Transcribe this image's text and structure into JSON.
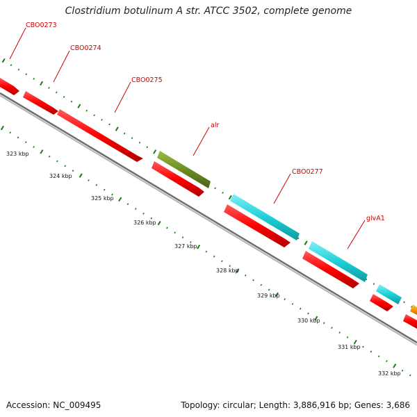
{
  "title": "Clostridium botulinum A str. ATCC 3502, complete genome",
  "footer": {
    "accession": "Accession: NC_009495",
    "summary": "Topology: circular; Length: 3,886,916 bp; Genes: 3,686"
  },
  "colors": {
    "backbone": "#8c8c8c",
    "ticks": "#1a7a1a",
    "label": "#cc0000",
    "gene_red": "#ff0000",
    "gene_cyan": "#1fd0d8",
    "gene_olive": "#6b8e23",
    "gene_orange": "#ff9900"
  },
  "kbp_labels": [
    "323 kbp",
    "324 kbp",
    "325 kbp",
    "326 kbp",
    "327 kbp",
    "328 kbp",
    "329 kbp",
    "330 kbp",
    "331 kbp",
    "332 kbp"
  ],
  "gene_labels": [
    "CBO0273",
    "CBO0274",
    "CBO0275",
    "alr",
    "CBO0277",
    "glvA1"
  ]
}
